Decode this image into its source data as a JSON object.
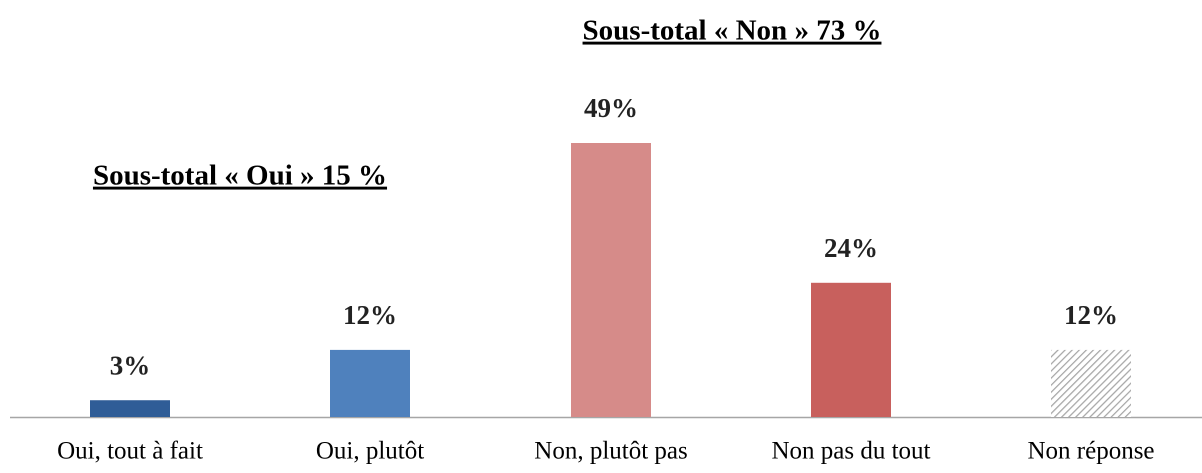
{
  "chart_data": {
    "type": "bar",
    "categories": [
      "Oui, tout à fait",
      "Oui, plutôt",
      "Non, plutôt pas",
      "Non pas du tout",
      "Non réponse"
    ],
    "values": [
      3,
      12,
      49,
      24,
      12
    ],
    "value_labels": [
      "3%",
      "12%",
      "49%",
      "24%",
      "12%"
    ],
    "colors": [
      "#2f5d97",
      "#4f81bd",
      "#d68b89",
      "#c8605d",
      "#bfbfbf"
    ],
    "hatch": [
      false,
      false,
      false,
      false,
      true
    ],
    "annotations": [
      {
        "text": "Sous-total « Oui » 15 %",
        "color": "#3c6496"
      },
      {
        "text": "Sous-total « Non » 73 %",
        "color": "#a5383a"
      }
    ]
  }
}
